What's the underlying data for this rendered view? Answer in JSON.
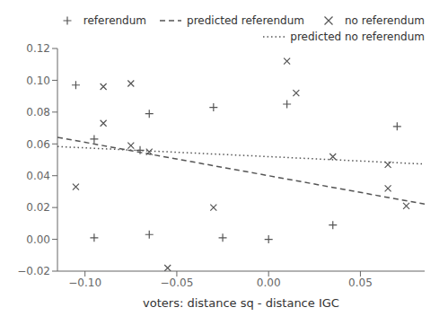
{
  "chart_data": {
    "type": "scatter",
    "xlabel": "voters: distance sq - distance IGC",
    "xlim": [
      -0.115,
      0.085
    ],
    "ylim": [
      -0.02,
      0.12
    ],
    "xticks": [
      {
        "value": -0.1,
        "label": "−0.10"
      },
      {
        "value": -0.05,
        "label": "−0.05"
      },
      {
        "value": 0,
        "label": "0.00"
      },
      {
        "value": 0.05,
        "label": "0.05"
      }
    ],
    "yticks": [
      {
        "value": -0.02,
        "label": "−0.02"
      },
      {
        "value": 0,
        "label": "0.00"
      },
      0.02,
      0.04,
      0.06,
      0.08,
      {
        "value": 0.1,
        "label": "0.10"
      },
      0.12
    ],
    "color": "#555555",
    "grid": false,
    "legend": "upper right",
    "series": [
      {
        "name": "referendum",
        "type": "scatter",
        "marker": "plus",
        "x": [
          -0.105,
          -0.095,
          -0.095,
          -0.07,
          -0.065,
          -0.065,
          -0.03,
          -0.025,
          0.01,
          0.0,
          0.035,
          0.07
        ],
        "values": [
          0.097,
          0.063,
          0.001,
          0.056,
          0.079,
          0.003,
          0.083,
          0.001,
          0.085,
          0.0,
          0.009,
          0.071
        ]
      },
      {
        "name": "predicted referendum",
        "type": "line",
        "line_style": "dashed",
        "x": [
          -0.115,
          0.085
        ],
        "values": [
          0.06415,
          0.02215
        ]
      },
      {
        "name": "no referendum",
        "type": "scatter",
        "marker": "cross",
        "x": [
          -0.09,
          -0.09,
          -0.105,
          -0.075,
          -0.075,
          -0.065,
          -0.055,
          -0.03,
          0.01,
          0.015,
          0.035,
          0.065,
          0.065,
          0.075
        ],
        "values": [
          0.096,
          0.073,
          0.033,
          0.059,
          0.098,
          0.055,
          -0.018,
          0.02,
          0.112,
          0.092,
          0.052,
          0.047,
          0.032,
          0.021
        ]
      },
      {
        "name": "predicted no referendum",
        "type": "line",
        "line_style": "dotted",
        "x": [
          -0.115,
          0.085
        ],
        "values": [
          0.058325,
          0.047325
        ]
      }
    ]
  }
}
